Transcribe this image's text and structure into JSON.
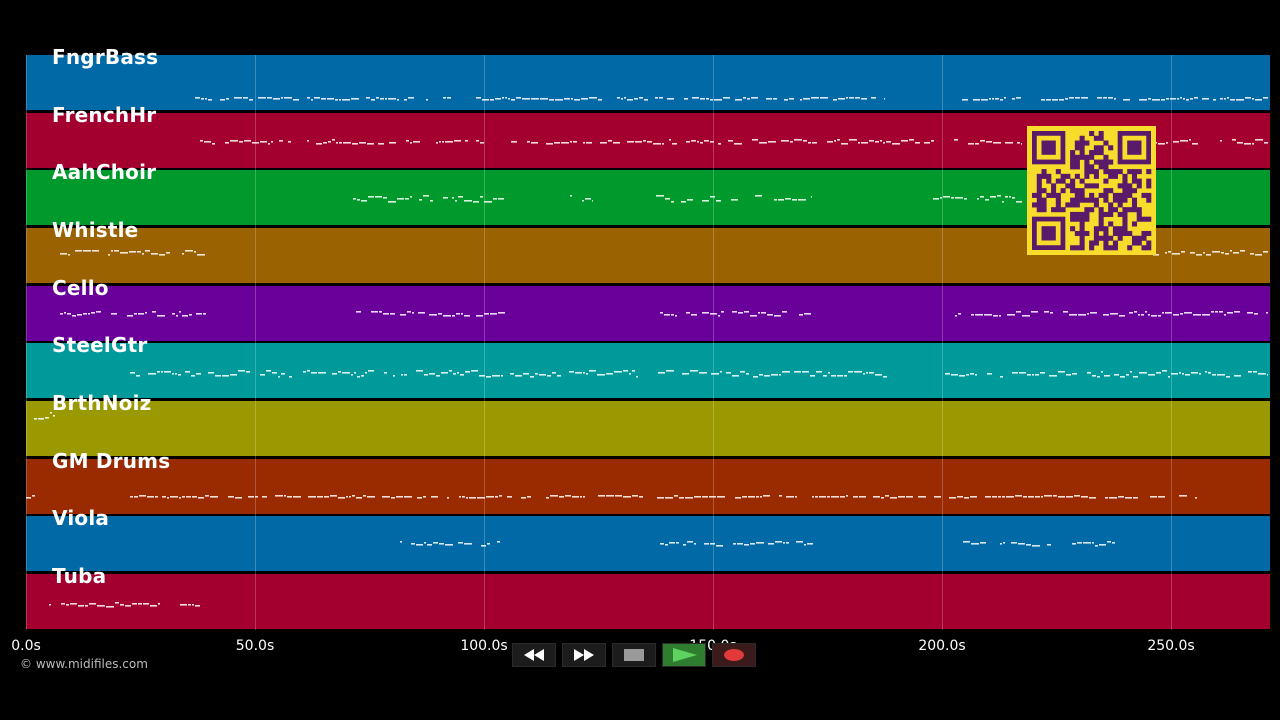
{
  "tracks": [
    {
      "label": "FngrBass",
      "color": "#0069a6"
    },
    {
      "label": "FrenchHr",
      "color": "#a3002f"
    },
    {
      "label": "AahChoir",
      "color": "#009a2c"
    },
    {
      "label": "Whistle",
      "color": "#9a6200"
    },
    {
      "label": "Cello",
      "color": "#6a009a"
    },
    {
      "label": "SteelGtr",
      "color": "#009a9a"
    },
    {
      "label": "BrthNoiz",
      "color": "#9a9a00"
    },
    {
      "label": "GM Drums",
      "color": "#9a2a00"
    },
    {
      "label": "Viola",
      "color": "#0069a6"
    },
    {
      "label": "Tuba",
      "color": "#a3002f"
    }
  ],
  "timeline": {
    "ticks": [
      "0.0s",
      "50.0s",
      "100.0s",
      "150.0s",
      "200.0s",
      "250.0s"
    ]
  },
  "copyright": "© www.midifiles.com",
  "controls": [
    {
      "name": "rewind-button",
      "icon": "rewind-icon"
    },
    {
      "name": "fast-forward-button",
      "icon": "fast-forward-icon"
    },
    {
      "name": "stop-button",
      "icon": "stop-icon"
    },
    {
      "name": "play-button",
      "icon": "play-icon"
    },
    {
      "name": "record-button",
      "icon": "record-icon"
    }
  ],
  "qr_code": {
    "icon": "qr-code-icon",
    "color": "#f8dc2c",
    "module_color": "#5a1a6a"
  }
}
